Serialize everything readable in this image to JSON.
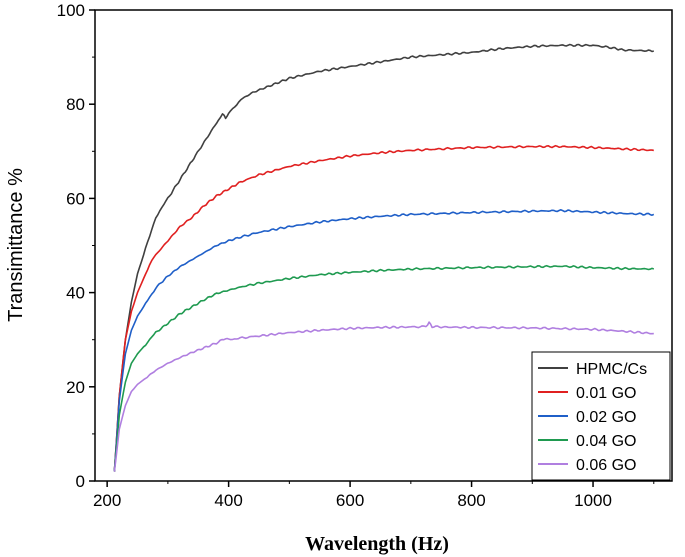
{
  "chart_data": {
    "type": "line",
    "title": "",
    "xlabel": "Wavelength (Hz)",
    "ylabel": "Transimittance %",
    "xlim": [
      180,
      1130
    ],
    "ylim": [
      0,
      100
    ],
    "xticks": [
      200,
      400,
      600,
      800,
      1000
    ],
    "yticks": [
      0,
      20,
      40,
      60,
      80,
      100
    ],
    "grid": false,
    "legend_position": "bottom-right",
    "series": [
      {
        "name": "HPMC/Cs",
        "color": "#404040",
        "x": [
          212,
          220,
          230,
          240,
          250,
          260,
          270,
          280,
          290,
          300,
          320,
          340,
          360,
          380,
          390,
          395,
          400,
          410,
          420,
          440,
          460,
          480,
          500,
          550,
          600,
          650,
          700,
          750,
          800,
          850,
          900,
          950,
          1000,
          1030,
          1050,
          1100
        ],
        "y": [
          2,
          18,
          30,
          38,
          44,
          48,
          52,
          56,
          58,
          60,
          64,
          68,
          72,
          76,
          78,
          77,
          78,
          79.5,
          81,
          82.5,
          83.5,
          84.5,
          85.5,
          87,
          88,
          89,
          90,
          90.5,
          91,
          91.8,
          92.3,
          92.5,
          92.5,
          92,
          91.5,
          91.3
        ]
      },
      {
        "name": "0.01 GO",
        "color": "#e02020",
        "x": [
          212,
          220,
          230,
          240,
          250,
          260,
          270,
          280,
          300,
          320,
          340,
          360,
          380,
          400,
          420,
          450,
          500,
          550,
          600,
          650,
          700,
          800,
          900,
          950,
          1000,
          1050,
          1100
        ],
        "y": [
          2,
          18,
          30,
          36,
          40,
          43,
          46,
          48,
          51,
          54,
          56,
          58.5,
          60.5,
          62,
          63.5,
          65,
          66.8,
          68,
          69,
          69.7,
          70.2,
          70.8,
          71,
          71,
          70.8,
          70.5,
          70.2
        ]
      },
      {
        "name": "0.02 GO",
        "color": "#1f5fc8",
        "x": [
          212,
          220,
          230,
          240,
          250,
          260,
          270,
          280,
          300,
          320,
          340,
          360,
          380,
          400,
          420,
          450,
          500,
          550,
          600,
          650,
          700,
          800,
          900,
          950,
          1000,
          1050,
          1100
        ],
        "y": [
          2,
          17,
          27,
          32,
          35,
          37,
          39,
          41,
          43.5,
          45.5,
          47,
          48.5,
          50,
          51,
          51.8,
          52.8,
          54,
          55,
          55.7,
          56.2,
          56.6,
          57,
          57.3,
          57.4,
          57.1,
          56.8,
          56.6
        ]
      },
      {
        "name": "0.04 GO",
        "color": "#1f9a50",
        "x": [
          212,
          220,
          230,
          240,
          250,
          260,
          270,
          280,
          300,
          320,
          340,
          360,
          380,
          400,
          420,
          450,
          500,
          550,
          600,
          650,
          700,
          800,
          900,
          950,
          1000,
          1050,
          1100
        ],
        "y": [
          2,
          14,
          21,
          25,
          27,
          28.5,
          30,
          31.5,
          33.5,
          35.5,
          37,
          38.5,
          39.8,
          40.5,
          41.2,
          42,
          43,
          43.8,
          44.3,
          44.7,
          45,
          45.3,
          45.5,
          45.6,
          45.3,
          45.1,
          45
        ]
      },
      {
        "name": "0.06 GO",
        "color": "#b07fe0",
        "x": [
          212,
          220,
          230,
          240,
          250,
          260,
          280,
          300,
          320,
          340,
          360,
          380,
          395,
          400,
          410,
          450,
          500,
          550,
          600,
          650,
          700,
          725,
          730,
          735,
          750,
          800,
          900,
          1000,
          1050,
          1100
        ],
        "y": [
          2,
          11,
          16,
          19,
          20.5,
          21.5,
          23.5,
          25,
          26.2,
          27.3,
          28.3,
          29.3,
          30.3,
          30,
          30.2,
          30.8,
          31.5,
          32,
          32.4,
          32.6,
          32.7,
          32.8,
          33.6,
          32.8,
          32.7,
          32.6,
          32.5,
          32.2,
          31.8,
          31.3
        ]
      }
    ]
  }
}
